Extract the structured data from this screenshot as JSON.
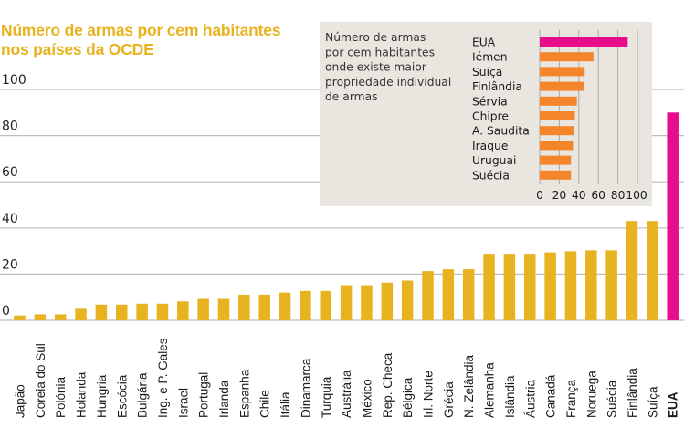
{
  "chart_data": [
    {
      "type": "bar",
      "orientation": "vertical",
      "title": "Número de armas por cem habitantes nos países da OCDE",
      "title_lines": [
        "Número de armas por cem habitantes",
        "nos países da OCDE"
      ],
      "xlabel": "",
      "ylabel": "",
      "ylim": [
        0,
        100
      ],
      "yticks": [
        0,
        20,
        40,
        60,
        80,
        100
      ],
      "grid": true,
      "categories": [
        "Japão",
        "Coreia do Sul",
        "Polónia",
        "Holanda",
        "Hungria",
        "Escócia",
        "Bulgária",
        "Ing. e P. Gales",
        "Israel",
        "Portugal",
        "Irlanda",
        "Espanha",
        "Chile",
        "Itália",
        "Dinamarca",
        "Turquia",
        "Austrália",
        "México",
        "Rep. Checa",
        "Bélgica",
        "Irl. Norte",
        "Grécia",
        "N. Zelândia",
        "Alemanha",
        "Islândia",
        "Áustria",
        "Canadá",
        "França",
        "Noruega",
        "Suécia",
        "Finlândia",
        "Suíça",
        "EUA"
      ],
      "values": [
        2.1,
        2.6,
        2.6,
        5.0,
        6.8,
        6.8,
        7.2,
        7.2,
        8.2,
        9.3,
        9.3,
        11.1,
        11.1,
        12.0,
        12.7,
        12.7,
        15.2,
        15.2,
        16.3,
        17.2,
        21.3,
        22.1,
        22.1,
        28.8,
        28.8,
        28.8,
        29.4,
        29.9,
        30.3,
        30.3,
        43.0,
        43.0,
        90.0
      ],
      "highlight": "EUA",
      "colors": {
        "default": "#e8b321",
        "highlight": "#e80d8c"
      }
    },
    {
      "type": "bar",
      "orientation": "horizontal",
      "title": "Número de armas por cem habitantes onde existe maior propriedade individual de armas",
      "title_lines": [
        "Número de armas",
        "por cem habitantes",
        "onde existe maior",
        "propriedade individual",
        "de armas"
      ],
      "xlim": [
        0,
        100
      ],
      "xticks": [
        0,
        20,
        40,
        60,
        80,
        100
      ],
      "grid": true,
      "categories": [
        "EUA",
        "Iémen",
        "Suíça",
        "Finlândia",
        "Sérvia",
        "Chipre",
        "A. Saudita",
        "Iraque",
        "Uruguai",
        "Suécia"
      ],
      "values": [
        90,
        55,
        46,
        45,
        38,
        36,
        35,
        34,
        32,
        32
      ],
      "highlight": "EUA",
      "legend": "none",
      "colors": {
        "default": "#f5852a",
        "highlight": "#e80d8c",
        "panel": "#e9e5df"
      }
    }
  ]
}
